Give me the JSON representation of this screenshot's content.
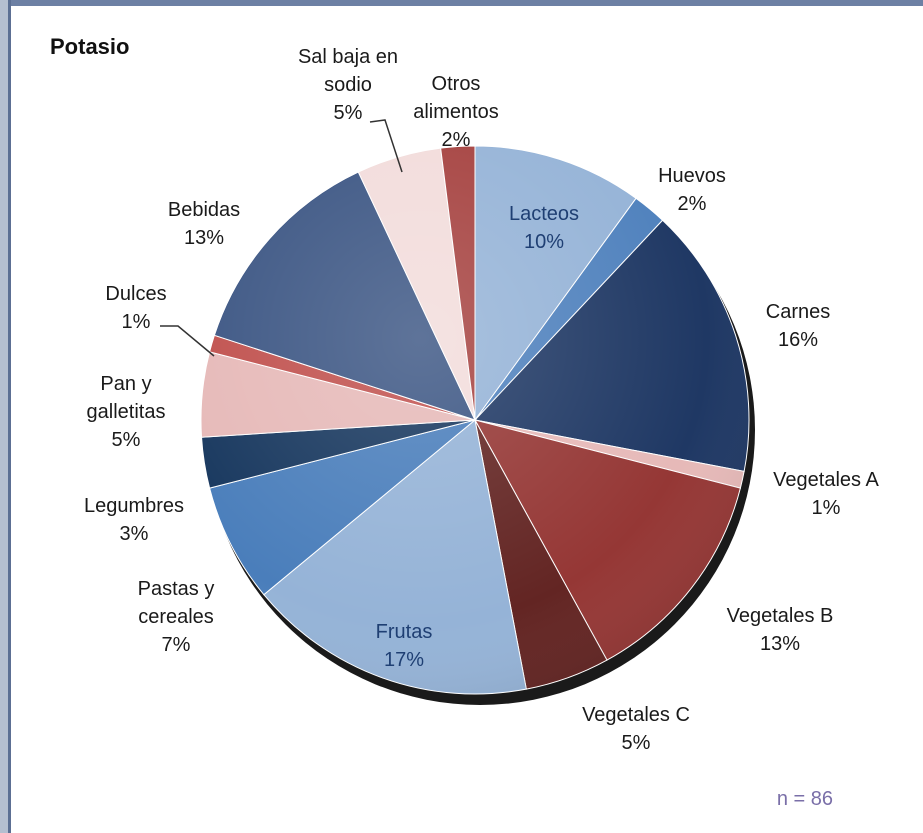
{
  "chart_data": {
    "type": "pie",
    "title": "Potasio",
    "slices": [
      {
        "label": "Lacteos",
        "value": 10,
        "value_label": "10%",
        "color": "#95b3d7",
        "label_inside": true
      },
      {
        "label": "Huevos",
        "value": 2,
        "value_label": "2%",
        "color": "#4f81bd",
        "label_inside": false
      },
      {
        "label": "Carnes",
        "value": 16,
        "value_label": "16%",
        "color": "#1f3864",
        "label_inside": false
      },
      {
        "label": "Vegetales A",
        "value": 1,
        "value_label": "1%",
        "color": "#e6b9b8",
        "label_inside": false
      },
      {
        "label": "Vegetales B",
        "value": 13,
        "value_label": "13%",
        "color": "#953735",
        "label_inside": false
      },
      {
        "label": "Vegetales C",
        "value": 5,
        "value_label": "5%",
        "color": "#632523",
        "label_inside": false
      },
      {
        "label": "Frutas",
        "value": 17,
        "value_label": "17%",
        "color": "#95b3d7",
        "label_inside": true
      },
      {
        "label": "Pastas y cereales",
        "value": 7,
        "value_label": "7%",
        "color": "#4a7ebb",
        "label_inside": false
      },
      {
        "label": "Legumbres",
        "value": 3,
        "value_label": "3%",
        "color": "#17375e",
        "label_inside": false
      },
      {
        "label": "Pan y galletitas",
        "value": 5,
        "value_label": "5%",
        "color": "#e6b9b8",
        "label_inside": false
      },
      {
        "label": "Dulces",
        "value": 1,
        "value_label": "1%",
        "color": "#c0504d",
        "label_inside": false
      },
      {
        "label": "Bebidas",
        "value": 13,
        "value_label": "13%",
        "color": "#3b5583",
        "label_inside": false
      },
      {
        "label": "Sal baja en sodio",
        "value": 5,
        "value_label": "5%",
        "color": "#f2dcdb",
        "label_inside": false
      },
      {
        "label": "Otros alimentos",
        "value": 2,
        "value_label": "2%",
        "color": "#a5413f",
        "label_inside": false
      }
    ],
    "legend": "none",
    "annotation": "n = 86"
  },
  "labels": {
    "lacteos": [
      "Lacteos",
      "10%"
    ],
    "huevos": [
      "Huevos",
      "2%"
    ],
    "carnes": [
      "Carnes",
      "16%"
    ],
    "vegetales_a": [
      "Vegetales A",
      "1%"
    ],
    "vegetales_b": [
      "Vegetales B",
      "13%"
    ],
    "vegetales_c": [
      "Vegetales C",
      "5%"
    ],
    "frutas": [
      "Frutas",
      "17%"
    ],
    "pastas": [
      "Pastas y",
      "cereales",
      "7%"
    ],
    "legumbres": [
      "Legumbres",
      "3%"
    ],
    "pan": [
      "Pan y",
      "galletitas",
      "5%"
    ],
    "dulces": [
      "Dulces",
      "1%"
    ],
    "bebidas": [
      "Bebidas",
      "13%"
    ],
    "sal": [
      "Sal baja en",
      "sodio",
      "5%"
    ],
    "otros": [
      "Otros",
      "alimentos",
      "2%"
    ]
  }
}
